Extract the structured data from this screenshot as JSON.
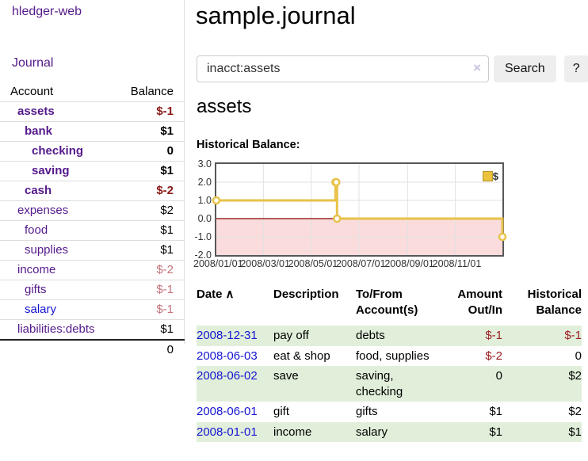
{
  "app": {
    "title": "hledger-web"
  },
  "colors": {
    "link_purple": "#551a8b",
    "link_blue": "#1414d2",
    "negative_strong": "#8c1a1a",
    "negative_soft": "#c4737b",
    "register_negative": "#9b1c20",
    "shaded_row_green": "#e1efda",
    "chart_line_gold": "#e8c24a",
    "chart_negative_fill": "#fadcdc",
    "chart_zero_line": "#8b0000"
  },
  "sidebar": {
    "nav": {
      "journal": "Journal"
    },
    "table": {
      "headers": {
        "account": "Account",
        "balance": "Balance"
      },
      "rows": [
        {
          "name": "assets",
          "level": 1,
          "bold": true,
          "balance": "$-1",
          "negative": "strong"
        },
        {
          "name": "bank",
          "level": 2,
          "bold": true,
          "balance": "$1"
        },
        {
          "name": "checking",
          "level": 3,
          "bold": true,
          "balance": "0"
        },
        {
          "name": "saving",
          "level": 3,
          "bold": true,
          "balance": "$1"
        },
        {
          "name": "cash",
          "level": 2,
          "bold": true,
          "balance": "$-2",
          "negative": "strong"
        },
        {
          "name": "expenses",
          "level": 1,
          "bold": false,
          "balance": "$2"
        },
        {
          "name": "food",
          "level": 2,
          "bold": false,
          "balance": "$1"
        },
        {
          "name": "supplies",
          "level": 2,
          "bold": false,
          "balance": "$1"
        },
        {
          "name": "income",
          "level": 1,
          "bold": false,
          "balance": "$-2",
          "negative": "soft"
        },
        {
          "name": "gifts",
          "level": 2,
          "bold": false,
          "balance": "$-1",
          "negative": "soft"
        },
        {
          "name": "salary",
          "level": 2,
          "bold": false,
          "balance": "$-1",
          "negative": "soft",
          "unvisited": true
        },
        {
          "name": "liabilities:debts",
          "level": 1,
          "bold": false,
          "balance": "$1"
        }
      ],
      "total": "0"
    }
  },
  "main": {
    "title": "sample.journal",
    "search": {
      "query": "inacct:assets",
      "clear_icon": "×",
      "button": "Search",
      "help": "?"
    },
    "account_heading": "assets",
    "chart_label": "Historical Balance:",
    "register": {
      "headers": {
        "date": "Date",
        "sort_icon": "∧",
        "description": "Description",
        "accounts": "To/From Account(s)",
        "amount": "Amount Out/In",
        "balance": "Historical Balance"
      },
      "rows": [
        {
          "date": "2008-12-31",
          "description": "pay off",
          "accounts": "debts",
          "amount": "$-1",
          "amount_negative": true,
          "balance": "$-1",
          "balance_negative": true,
          "shaded": true
        },
        {
          "date": "2008-06-03",
          "description": "eat & shop",
          "accounts": "food, supplies",
          "amount": "$-2",
          "amount_negative": true,
          "balance": "0",
          "balance_negative": false,
          "shaded": false
        },
        {
          "date": "2008-06-02",
          "description": "save",
          "accounts": "saving, checking",
          "amount": "0",
          "amount_negative": false,
          "balance": "$2",
          "balance_negative": false,
          "shaded": true
        },
        {
          "date": "2008-06-01",
          "description": "gift",
          "accounts": "gifts",
          "amount": "$1",
          "amount_negative": false,
          "balance": "$2",
          "balance_negative": false,
          "shaded": false
        },
        {
          "date": "2008-01-01",
          "description": "income",
          "accounts": "salary",
          "amount": "$1",
          "amount_negative": false,
          "balance": "$1",
          "balance_negative": false,
          "shaded": true
        }
      ]
    }
  },
  "chart_data": {
    "type": "line",
    "title": "Historical Balance:",
    "step": true,
    "ylim": [
      -2,
      3
    ],
    "yticks": [
      "3.0",
      "2.0",
      "1.0",
      "0.0",
      "-1.0",
      "-2.0"
    ],
    "ygrid_values": [
      2,
      1,
      -1
    ],
    "xticks": [
      {
        "label": "2008/01/01",
        "x": 0.0
      },
      {
        "label": "2008/03/01",
        "x": 0.1644
      },
      {
        "label": "2008/05/01",
        "x": 0.3315
      },
      {
        "label": "2008/07/01",
        "x": 0.4986
      },
      {
        "label": "2008/09/01",
        "x": 0.6685
      },
      {
        "label": "2008/11/01",
        "x": 0.8356
      }
    ],
    "series": [
      {
        "name": "$",
        "color": "#e8c24a",
        "points": [
          {
            "date": "2008-01-01",
            "x": 0.0,
            "y": 1
          },
          {
            "date": "2008-06-01",
            "x": 0.4164,
            "y": 2
          },
          {
            "date": "2008-06-02",
            "x": 0.4192,
            "y": 2
          },
          {
            "date": "2008-06-03",
            "x": 0.4219,
            "y": 0
          },
          {
            "date": "2008-12-31",
            "x": 1.0,
            "y": -1
          }
        ]
      }
    ],
    "negative_fill": "#fadcdc",
    "zero_line_color": "#8b0000",
    "grid": true,
    "legend": {
      "label": "$",
      "color": "#eac23e",
      "position": "top-right"
    }
  }
}
